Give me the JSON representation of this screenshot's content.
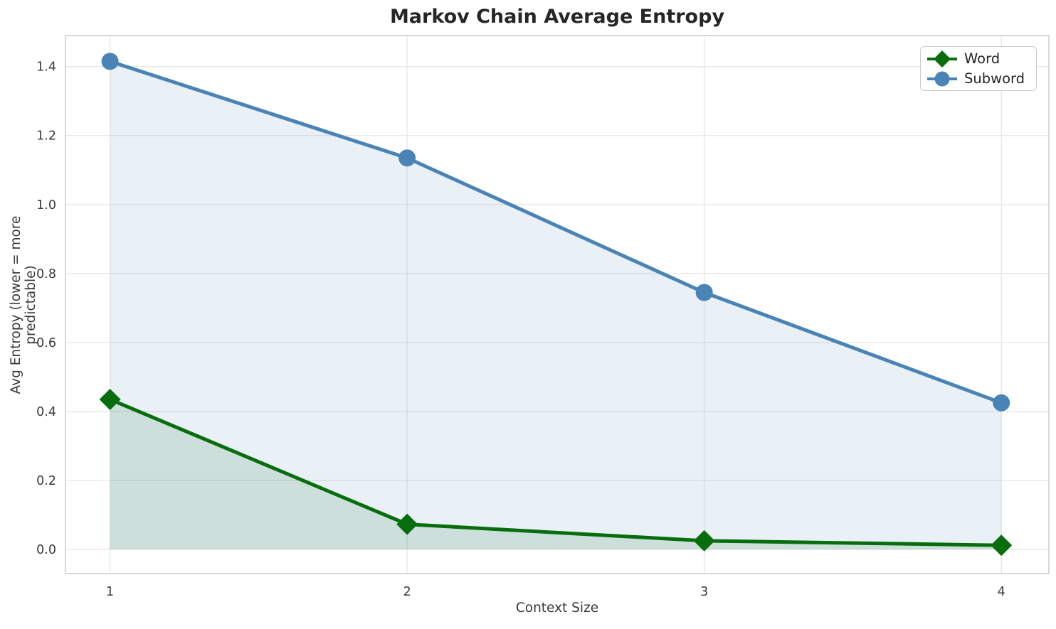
{
  "chart_data": {
    "type": "line",
    "title": "Markov Chain Average Entropy",
    "xlabel": "Context Size",
    "ylabel": "Avg Entropy (lower = more predictable)",
    "x": [
      1,
      2,
      3,
      4
    ],
    "series": [
      {
        "name": "Word",
        "values": [
          0.435,
          0.073,
          0.025,
          0.012
        ],
        "color": "#086e0d",
        "marker": "diamond",
        "fill_to_zero": true
      },
      {
        "name": "Subword",
        "values": [
          1.415,
          1.135,
          0.745,
          0.425
        ],
        "color": "#4a83b5",
        "marker": "circle",
        "fill_to_zero": true
      }
    ],
    "xticks": [
      1,
      2,
      3,
      4
    ],
    "yticks": [
      0.0,
      0.2,
      0.4,
      0.6,
      0.8,
      1.0,
      1.2,
      1.4
    ],
    "xlim": [
      0.85,
      4.16
    ],
    "ylim": [
      -0.07,
      1.49
    ],
    "grid": true,
    "legend_position": "upper right"
  },
  "colors": {
    "background": "#ffffff",
    "grid": "#e7e7e7",
    "spine": "#cccccc",
    "title_text": "#262626",
    "tick_text": "#3a3a3a",
    "fill_opacity": "0.12"
  }
}
